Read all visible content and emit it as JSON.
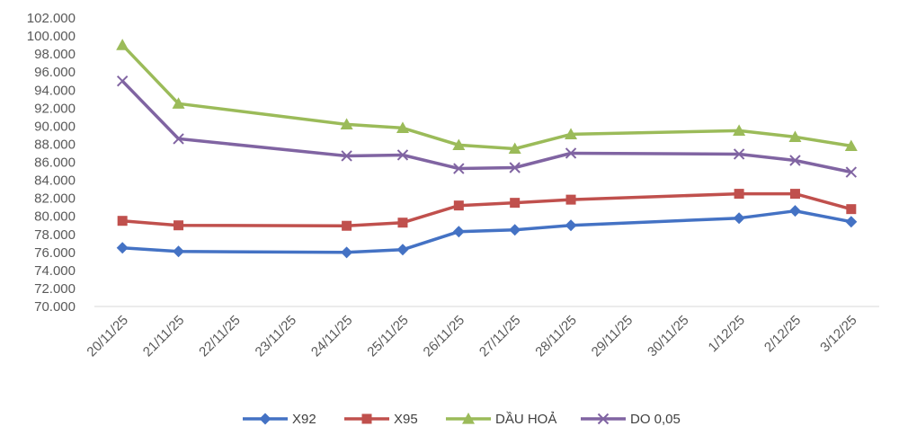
{
  "chart_data": {
    "type": "line",
    "title": "",
    "xlabel": "",
    "ylabel": "",
    "ylim": [
      70000,
      102000
    ],
    "ystep": 2000,
    "grid": false,
    "legend_position": "bottom",
    "categories": [
      "20/11/25",
      "21/11/25",
      "22/11/25",
      "23/11/25",
      "24/11/25",
      "25/11/25",
      "26/11/25",
      "27/11/25",
      "28/11/25",
      "29/11/25",
      "30/11/25",
      "1/12/25",
      "2/12/25",
      "3/12/25"
    ],
    "y_tick_labels": [
      "70.000",
      "72.000",
      "74.000",
      "76.000",
      "78.000",
      "80.000",
      "82.000",
      "84.000",
      "86.000",
      "88.000",
      "90.000",
      "92.000",
      "94.000",
      "96.000",
      "98.000",
      "100.000",
      "102.000"
    ],
    "series": [
      {
        "name": "X92",
        "color": "#4472c4",
        "marker": "diamond",
        "values": [
          76500,
          76100,
          null,
          null,
          76000,
          76300,
          78300,
          78500,
          79000,
          null,
          null,
          79800,
          80600,
          79400
        ]
      },
      {
        "name": "X95",
        "color": "#c0504d",
        "marker": "square",
        "values": [
          79500,
          79000,
          null,
          null,
          78950,
          79300,
          81200,
          81500,
          81850,
          null,
          null,
          82500,
          82500,
          80800
        ]
      },
      {
        "name": "DẦU HOẢ",
        "color": "#9bbb59",
        "marker": "triangle",
        "values": [
          99000,
          92500,
          null,
          null,
          90200,
          89800,
          87900,
          87500,
          89100,
          null,
          null,
          89500,
          88800,
          87800
        ]
      },
      {
        "name": "DO 0,05",
        "color": "#8064a2",
        "marker": "x",
        "values": [
          95000,
          88600,
          null,
          null,
          86700,
          86800,
          85300,
          85400,
          87000,
          null,
          null,
          86900,
          86200,
          84900
        ]
      }
    ]
  }
}
